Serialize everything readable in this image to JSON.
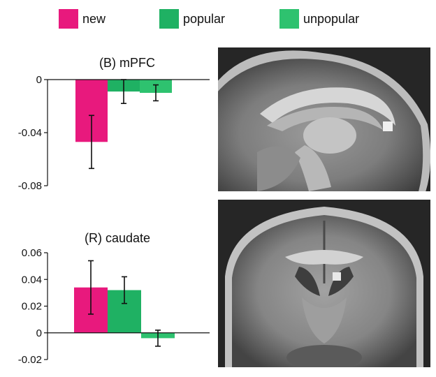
{
  "legend": [
    {
      "label": "new",
      "color": "#e8197d"
    },
    {
      "label": "popular",
      "color": "#1fb163"
    },
    {
      "label": "unpopular",
      "color": "#2ec26f"
    }
  ],
  "chart_data": [
    {
      "type": "bar",
      "title": "(B) mPFC",
      "categories": [
        "new",
        "popular",
        "unpopular"
      ],
      "values": [
        -0.047,
        -0.009,
        -0.01
      ],
      "errors": [
        0.02,
        0.009,
        0.006
      ],
      "colors": [
        "#e8197d",
        "#1fb163",
        "#2ec26f"
      ],
      "ylim": [
        -0.08,
        0
      ],
      "yticks": [
        0,
        -0.04,
        -0.08
      ],
      "ytick_labels": [
        "0",
        "-0.04",
        "-0.08"
      ]
    },
    {
      "type": "bar",
      "title": "(R) caudate",
      "categories": [
        "new",
        "popular",
        "unpopular"
      ],
      "values": [
        0.034,
        0.032,
        -0.004
      ],
      "errors": [
        0.02,
        0.01,
        0.006
      ],
      "colors": [
        "#e8197d",
        "#1fb163",
        "#2ec26f"
      ],
      "ylim": [
        -0.02,
        0.06
      ],
      "yticks": [
        0.06,
        0.04,
        0.02,
        0,
        -0.02
      ],
      "ytick_labels": [
        "0.06",
        "0.04",
        "0.02",
        "0",
        "-0.02"
      ]
    }
  ],
  "images": [
    {
      "name": "sagittal-brain-slice"
    },
    {
      "name": "coronal-brain-slice"
    }
  ]
}
